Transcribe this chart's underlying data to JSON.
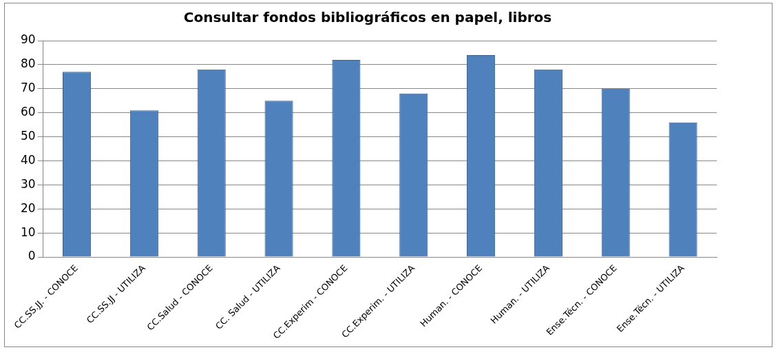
{
  "chart_data": {
    "type": "bar",
    "title": "Consultar fondos bibliográficos en papel, libros",
    "categories": [
      "CC.SS.JJ. - CONOCE",
      "CC.SS.JJ - UTILIZA",
      "CC.Salud - CONOCE",
      "CC. Salud - UTILIZA",
      "CC.Experim - CONOCE",
      "CC.Experim. - UTILIZA",
      "Human. - CONOCE",
      "Human. - UTILIZA",
      "Ense.Técn. - CONOCE",
      "Ense.Técn. - UTILIZA"
    ],
    "values": [
      77,
      61,
      78,
      65,
      82,
      68,
      84,
      78,
      70,
      56
    ],
    "color": "#4f81bd",
    "ylim": [
      0,
      90
    ],
    "yticks": [
      0,
      10,
      20,
      30,
      40,
      50,
      60,
      70,
      80,
      90
    ],
    "grid": "y"
  }
}
